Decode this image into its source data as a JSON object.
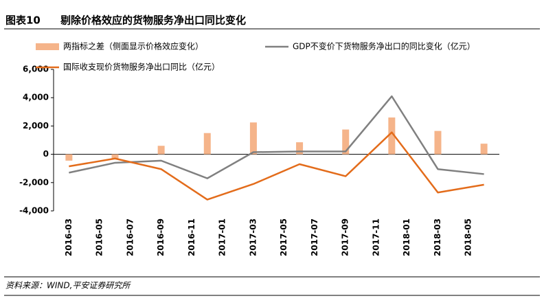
{
  "chart_data": {
    "type": "bar",
    "figure_label": "图表10",
    "title": "剔除价格效应的货物服务净出口同比变化",
    "source": "资料来源：WIND,平安证券研究所",
    "x": [
      0,
      3,
      6,
      9,
      12,
      15,
      18,
      21,
      24,
      27
    ],
    "xlim": [
      -1,
      28
    ],
    "xticks": [
      {
        "value": 0,
        "label": "2016-03"
      },
      {
        "value": 2,
        "label": "2016-05"
      },
      {
        "value": 4,
        "label": "2016-07"
      },
      {
        "value": 6,
        "label": "2016-09"
      },
      {
        "value": 8,
        "label": "2016-11"
      },
      {
        "value": 10,
        "label": "2017-01"
      },
      {
        "value": 12,
        "label": "2017-03"
      },
      {
        "value": 14,
        "label": "2017-05"
      },
      {
        "value": 16,
        "label": "2017-07"
      },
      {
        "value": 18,
        "label": "2017-09"
      },
      {
        "value": 20,
        "label": "2017-11"
      },
      {
        "value": 22,
        "label": "2018-01"
      },
      {
        "value": 24,
        "label": "2018-03"
      },
      {
        "value": 26,
        "label": "2018-05"
      }
    ],
    "ylim": [
      -4000,
      6000
    ],
    "yticks": [
      {
        "value": -4000,
        "label": "-4,000"
      },
      {
        "value": -2000,
        "label": "-2,000"
      },
      0,
      {
        "value": 2000,
        "label": "2,000"
      },
      {
        "value": 4000,
        "label": "4,000"
      },
      {
        "value": 6000,
        "label": "6,000"
      }
    ],
    "series": [
      {
        "name": "两指标之差（侧面显示价格效应变化）",
        "type": "bar",
        "color": "#f5b48a",
        "values": [
          -450,
          -300,
          600,
          1500,
          2250,
          850,
          1750,
          2600,
          1650,
          750
        ]
      },
      {
        "name": "GDP不变价下货物服务净出口的同比变化（亿元）",
        "type": "line",
        "color": "#808080",
        "values": [
          -1300,
          -600,
          -450,
          -1700,
          150,
          200,
          200,
          4100,
          -1050,
          -1400
        ]
      },
      {
        "name": "国际收支现价货物服务净出口同比（亿元）",
        "type": "line",
        "color": "#e36c1b",
        "values": [
          -850,
          -300,
          -1050,
          -3200,
          -2100,
          -700,
          -1550,
          1550,
          -2700,
          -2150
        ]
      }
    ]
  }
}
